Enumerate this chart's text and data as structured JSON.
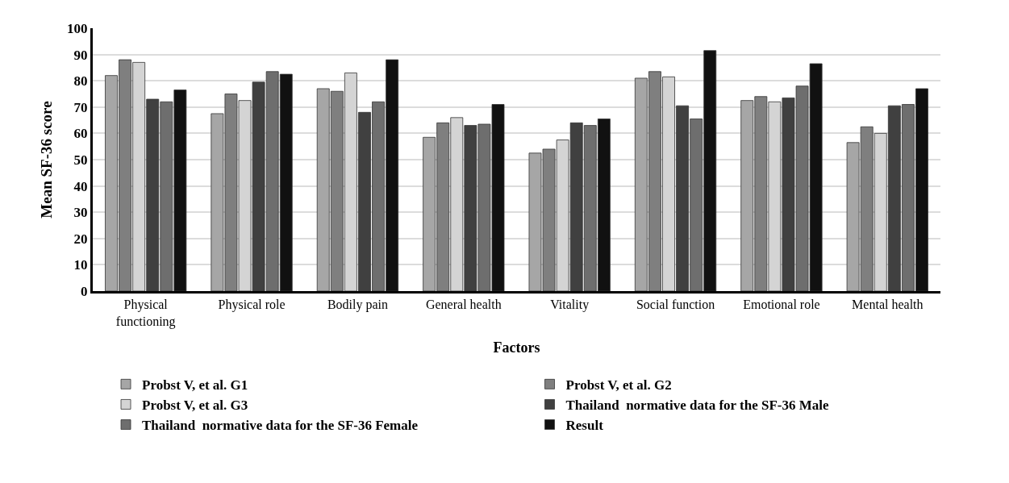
{
  "chart_data": {
    "type": "bar",
    "xlabel": "Factors",
    "ylabel": "Mean SF-36 score",
    "categories": [
      "Physical functioning",
      "Physical role",
      "Bodily pain",
      "General health",
      "Vitality",
      "Social function",
      "Emotional role",
      "Mental health"
    ],
    "series": [
      {
        "name": "Probst V, et al. G1",
        "color": "#a6a6a6",
        "values": [
          82,
          67.5,
          77,
          58.5,
          52.5,
          81,
          72.5,
          56.5
        ]
      },
      {
        "name": "Probst V, et al. G2",
        "color": "#7f7f7f",
        "values": [
          88,
          75,
          76,
          64,
          54,
          83.5,
          74,
          62.5
        ]
      },
      {
        "name": "Probst V, et al. G3",
        "color": "#d4d4d4",
        "values": [
          87,
          72.5,
          83,
          66,
          57.5,
          81.5,
          72,
          60
        ]
      },
      {
        "name": "Thailand  normative data for the SF-36 Male",
        "color": "#404040",
        "values": [
          73,
          79.5,
          68,
          63,
          64,
          70.5,
          73.5,
          70.5
        ]
      },
      {
        "name": "Thailand  normative data for the SF-36 Female",
        "color": "#6e6e6e",
        "values": [
          72,
          83.5,
          72,
          63.5,
          63,
          65.5,
          78,
          71
        ]
      },
      {
        "name": "Result",
        "color": "#111111",
        "values": [
          76.5,
          82.5,
          88,
          71,
          65.5,
          91.5,
          86.5,
          77
        ]
      }
    ],
    "ylim": [
      0,
      100
    ],
    "yticks": [
      0,
      10,
      20,
      30,
      40,
      50,
      60,
      70,
      80,
      90,
      100
    ],
    "grid": "y",
    "legend": "bottom"
  }
}
